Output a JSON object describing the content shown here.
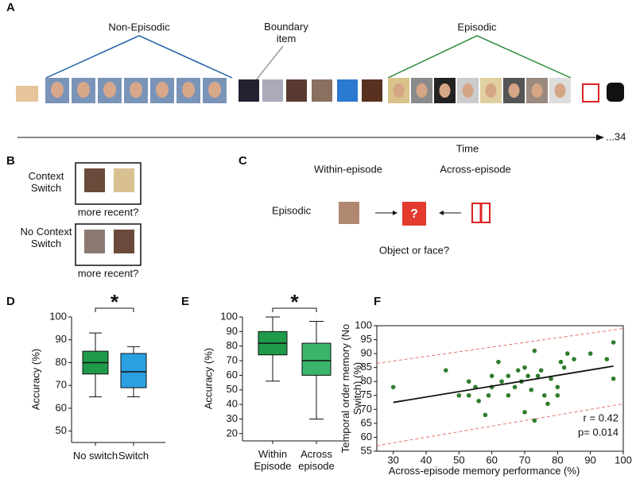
{
  "panel_a": {
    "label": "A",
    "non_episodic": "Non-Episodic",
    "boundary": "Boundary item",
    "episodic": "Episodic",
    "time": "Time",
    "end": "...34"
  },
  "panel_b": {
    "label": "B",
    "switch": "Context Switch",
    "switch_question": "more recent?",
    "no_switch": "No Context Switch",
    "no_switch_question": "more recent?"
  },
  "panel_c": {
    "label": "C",
    "within": "Within-episode",
    "across": "Across-episode",
    "row": "Episodic",
    "query": "?",
    "question": "Object or face?"
  },
  "chart_data": [
    {
      "type": "box",
      "panel": "D",
      "ylabel": "Accuracy (%)",
      "categories": [
        "No switch",
        "Switch"
      ],
      "colors": [
        "#1e9a4a",
        "#2aa0e0"
      ],
      "boxes": [
        {
          "low": 65,
          "q1": 75,
          "median": 80,
          "q3": 85,
          "high": 93
        },
        {
          "low": 65,
          "q1": 69,
          "median": 76,
          "q3": 84,
          "high": 87
        }
      ],
      "ylim": [
        45,
        100
      ],
      "yticks": [
        50,
        60,
        70,
        80,
        90,
        100
      ],
      "annotation": "*"
    },
    {
      "type": "box",
      "panel": "E",
      "ylabel": "Accuracy (%)",
      "categories": [
        "Within Episode",
        "Across episode"
      ],
      "colors": [
        "#1e9a4a",
        "#3cb56a"
      ],
      "boxes": [
        {
          "low": 56,
          "q1": 74,
          "median": 82,
          "q3": 90,
          "high": 100
        },
        {
          "low": 30,
          "q1": 60,
          "median": 70,
          "q3": 82,
          "high": 97
        }
      ],
      "ylim": [
        15,
        100
      ],
      "yticks": [
        20,
        30,
        40,
        50,
        60,
        70,
        80,
        90,
        100
      ],
      "annotation": "*"
    },
    {
      "type": "scatter",
      "panel": "F",
      "xlabel": "Across-episode memory performance (%)",
      "ylabel": "Temporal order memory (No Switch) (%)",
      "color": "#2e7d2e",
      "x": [
        30,
        46,
        50,
        53,
        53,
        55,
        56,
        58,
        59,
        60,
        60,
        62,
        63,
        65,
        65,
        67,
        68,
        69,
        70,
        70,
        71,
        72,
        73,
        73,
        74,
        75,
        76,
        77,
        78,
        80,
        80,
        81,
        82,
        83,
        85,
        90,
        95,
        97,
        97
      ],
      "y": [
        78,
        84,
        75,
        75,
        80,
        78,
        73,
        68,
        75,
        78,
        82,
        87,
        80,
        75,
        82,
        78,
        84,
        80,
        85,
        69,
        82,
        77,
        91,
        66,
        82,
        84,
        75,
        72,
        81,
        78,
        75,
        87,
        85,
        90,
        88,
        90,
        88,
        94,
        81
      ],
      "xlim": [
        25,
        100
      ],
      "ylim": [
        55,
        100
      ],
      "xticks": [
        30,
        40,
        50,
        60,
        70,
        80,
        90,
        100
      ],
      "yticks": [
        55,
        60,
        65,
        70,
        75,
        80,
        85,
        90,
        95,
        100
      ],
      "fit": {
        "x": [
          30,
          97
        ],
        "y": [
          72.5,
          85.5
        ]
      },
      "ci_upper": {
        "x": [
          25,
          100
        ],
        "y": [
          86.5,
          99
        ]
      },
      "ci_lower": {
        "x": [
          25,
          100
        ],
        "y": [
          57,
          72
        ]
      },
      "annotations": [
        "r = 0.42",
        "p= 0.014"
      ]
    }
  ]
}
